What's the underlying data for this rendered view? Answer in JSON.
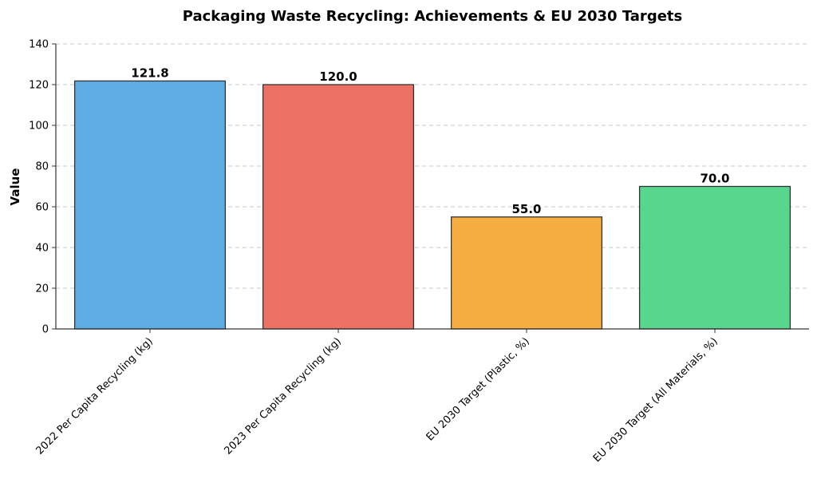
{
  "chart_data": {
    "type": "bar",
    "title": "Packaging Waste Recycling: Achievements & EU 2030 Targets",
    "xlabel": "",
    "ylabel": "Value",
    "ylim": [
      0,
      140
    ],
    "yticks": [
      0,
      20,
      40,
      60,
      80,
      100,
      120,
      140
    ],
    "categories": [
      "2022 Per Capita Recycling (kg)",
      "2023 Per Capita Recycling (kg)",
      "EU 2030 Target (Plastic, %)",
      "EU 2030 Target (All Materials, %)"
    ],
    "values": [
      121.8,
      120.0,
      55.0,
      70.0
    ],
    "data_labels": [
      "121.8",
      "120.0",
      "55.0",
      "70.0"
    ],
    "colors": [
      "#5DADE2",
      "#EC7063",
      "#F5AD42",
      "#58D68D"
    ],
    "bar_edge_color": "#333333",
    "grid": "y-dashed",
    "legend": "none"
  }
}
